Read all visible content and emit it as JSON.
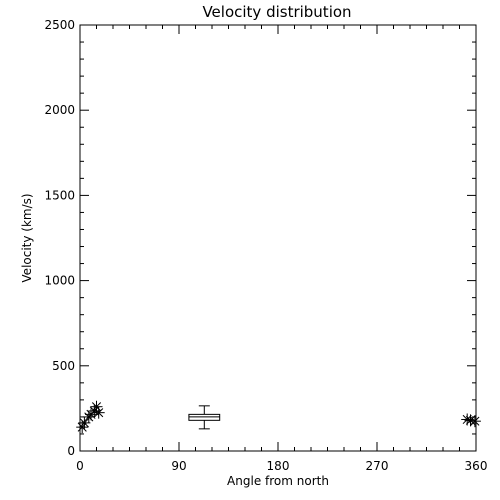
{
  "chart_data": {
    "type": "scatter",
    "title": "Velocity distribution",
    "xlabel": "Angle from north",
    "ylabel": "Velocity (km/s)",
    "xlim": [
      0,
      360
    ],
    "ylim": [
      0,
      2500
    ],
    "xticks": [
      0,
      90,
      180,
      270,
      360
    ],
    "yticks": [
      0,
      500,
      1000,
      1500,
      2000,
      2500
    ],
    "xtick_labels": [
      "0",
      "90",
      "180",
      "270",
      "360"
    ],
    "ytick_labels": [
      "0",
      "500",
      "1000",
      "1500",
      "2000",
      "2500"
    ],
    "grid": false,
    "colors": {
      "foreground": "#000000",
      "background": "#ffffff"
    },
    "series": [
      {
        "marker": "asterisk",
        "points": [
          {
            "x": 2,
            "y": 140
          },
          {
            "x": 4,
            "y": 165
          },
          {
            "x": 8,
            "y": 200
          },
          {
            "x": 10,
            "y": 215
          },
          {
            "x": 13,
            "y": 235
          },
          {
            "x": 15,
            "y": 260
          },
          {
            "x": 17,
            "y": 225
          },
          {
            "x": 352,
            "y": 185
          },
          {
            "x": 355,
            "y": 180
          },
          {
            "x": 359,
            "y": 175
          }
        ]
      }
    ],
    "boxplot": {
      "x": 113,
      "x_halfwidth": 14,
      "whisker_cap_halfwidth": 5,
      "min": 130,
      "q1": 180,
      "median": 200,
      "q3": 215,
      "max": 265
    }
  }
}
